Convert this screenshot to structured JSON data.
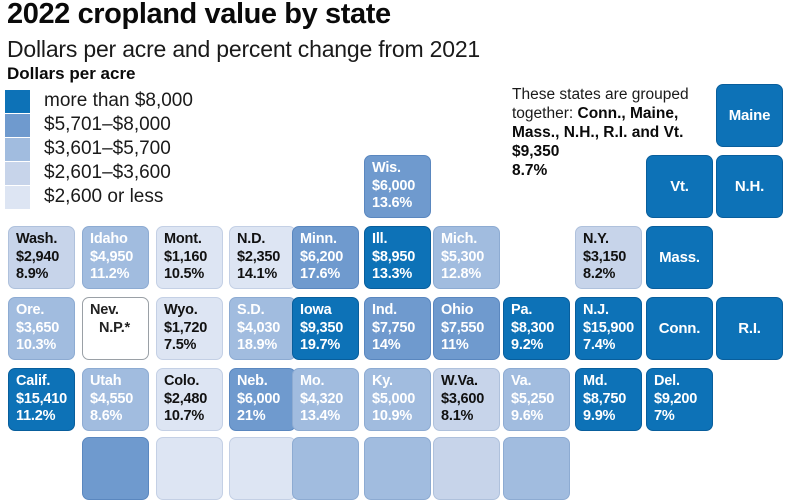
{
  "title": "2022 cropland value by state",
  "subtitle": "Dollars per acre and percent change from 2021",
  "legend": {
    "title": "Dollars per acre",
    "items": [
      {
        "label": "more than $8,000",
        "color": "#0d72b7"
      },
      {
        "label": "$5,701–$8,000",
        "color": "#6f9ace"
      },
      {
        "label": "$3,601–$5,700",
        "color": "#a1bcdf"
      },
      {
        "label": "$2,601–$3,600",
        "color": "#c7d4ea"
      },
      {
        "label": "$2,600 or less",
        "color": "#dde5f3"
      }
    ]
  },
  "annotation": {
    "line1": "These states are grouped",
    "line2_regular": "together: ",
    "line2_bold": "Conn., Maine,",
    "line3_bold": "Mass., N.H., R.I. and Vt.",
    "value": "$9,350",
    "pct": "8.7%"
  },
  "colors": {
    "1": {
      "bg": "#0d72b7",
      "border": "#085e9c",
      "text": "#ffffff"
    },
    "2": {
      "bg": "#6f9ace",
      "border": "#5a87bf",
      "text": "#ffffff"
    },
    "3": {
      "bg": "#a1bcdf",
      "border": "#8dabd2",
      "text": "#ffffff"
    },
    "4": {
      "bg": "#c7d4ea",
      "border": "#afc1dc",
      "text": "#111111"
    },
    "5": {
      "bg": "#dde5f3",
      "border": "#c4d0e5",
      "text": "#111111"
    },
    "np": {
      "bg": "#ffffff",
      "border": "#9aa0a6",
      "text": "#222222"
    }
  },
  "tiles": [
    {
      "name": "Maine",
      "cat": "1",
      "col": 10,
      "row": "maine",
      "label_only": true
    },
    {
      "name": "Vt.",
      "cat": "1",
      "col": 9,
      "row": "vt",
      "label_only": true
    },
    {
      "name": "N.H.",
      "cat": "1",
      "col": 10,
      "row": "vt",
      "label_only": true
    },
    {
      "name": "Wis.",
      "value": "$6,000",
      "pct": "13.6%",
      "cat": "2",
      "col": 5,
      "row": "vt"
    },
    {
      "name": "Wash.",
      "value": "$2,940",
      "pct": "8.9%",
      "cat": "4",
      "col": 0,
      "row": "r1"
    },
    {
      "name": "Idaho",
      "value": "$4,950",
      "pct": "11.2%",
      "cat": "3",
      "col": 1,
      "row": "r1"
    },
    {
      "name": "Mont.",
      "value": "$1,160",
      "pct": "10.5%",
      "cat": "5",
      "col": 2,
      "row": "r1"
    },
    {
      "name": "N.D.",
      "value": "$2,350",
      "pct": "14.1%",
      "cat": "5",
      "col": 3,
      "row": "r1"
    },
    {
      "name": "Minn.",
      "value": "$6,200",
      "pct": "17.6%",
      "cat": "2",
      "col": 4,
      "row": "r1"
    },
    {
      "name": "Ill.",
      "value": "$8,950",
      "pct": "13.3%",
      "cat": "1",
      "col": 5,
      "row": "r1"
    },
    {
      "name": "Mich.",
      "value": "$5,300",
      "pct": "12.8%",
      "cat": "3",
      "col": 6,
      "row": "r1"
    },
    {
      "name": "N.Y.",
      "value": "$3,150",
      "pct": "8.2%",
      "cat": "4",
      "col": 8,
      "row": "r1"
    },
    {
      "name": "Mass.",
      "cat": "1",
      "col": 9,
      "row": "r1",
      "label_only": true
    },
    {
      "name": "Ore.",
      "value": "$3,650",
      "pct": "10.3%",
      "cat": "3",
      "col": 0,
      "row": "r2"
    },
    {
      "name": "Nev.",
      "value": "N.P.*",
      "cat": "np",
      "col": 1,
      "row": "r2",
      "np": true
    },
    {
      "name": "Wyo.",
      "value": "$1,720",
      "pct": "7.5%",
      "cat": "5",
      "col": 2,
      "row": "r2"
    },
    {
      "name": "S.D.",
      "value": "$4,030",
      "pct": "18.9%",
      "cat": "3",
      "col": 3,
      "row": "r2"
    },
    {
      "name": "Iowa",
      "value": "$9,350",
      "pct": "19.7%",
      "cat": "1",
      "col": 4,
      "row": "r2"
    },
    {
      "name": "Ind.",
      "value": "$7,750",
      "pct": "14%",
      "cat": "2",
      "col": 5,
      "row": "r2"
    },
    {
      "name": "Ohio",
      "value": "$7,550",
      "pct": "11%",
      "cat": "2",
      "col": 6,
      "row": "r2"
    },
    {
      "name": "Pa.",
      "value": "$8,300",
      "pct": "9.2%",
      "cat": "1",
      "col": 7,
      "row": "r2"
    },
    {
      "name": "N.J.",
      "value": "$15,900",
      "pct": "7.4%",
      "cat": "1",
      "col": 8,
      "row": "r2"
    },
    {
      "name": "Conn.",
      "cat": "1",
      "col": 9,
      "row": "r2",
      "label_only": true
    },
    {
      "name": "R.I.",
      "cat": "1",
      "col": 10,
      "row": "r2",
      "label_only": true
    },
    {
      "name": "Calif.",
      "value": "$15,410",
      "pct": "11.2%",
      "cat": "1",
      "col": 0,
      "row": "r3"
    },
    {
      "name": "Utah",
      "value": "$4,550",
      "pct": "8.6%",
      "cat": "3",
      "col": 1,
      "row": "r3"
    },
    {
      "name": "Colo.",
      "value": "$2,480",
      "pct": "10.7%",
      "cat": "5",
      "col": 2,
      "row": "r3"
    },
    {
      "name": "Neb.",
      "value": "$6,000",
      "pct": "21%",
      "cat": "2",
      "col": 3,
      "row": "r3"
    },
    {
      "name": "Mo.",
      "value": "$4,320",
      "pct": "13.4%",
      "cat": "3",
      "col": 4,
      "row": "r3"
    },
    {
      "name": "Ky.",
      "value": "$5,000",
      "pct": "10.9%",
      "cat": "3",
      "col": 5,
      "row": "r3"
    },
    {
      "name": "W.Va.",
      "value": "$3,600",
      "pct": "8.1%",
      "cat": "4",
      "col": 6,
      "row": "r3"
    },
    {
      "name": "Va.",
      "value": "$5,250",
      "pct": "9.6%",
      "cat": "3",
      "col": 7,
      "row": "r3"
    },
    {
      "name": "Md.",
      "value": "$8,750",
      "pct": "9.9%",
      "cat": "1",
      "col": 8,
      "row": "r3"
    },
    {
      "name": "Del.",
      "value": "$9,200",
      "pct": "7%",
      "cat": "1",
      "col": 9,
      "row": "r3"
    },
    {
      "name": "",
      "cat": "2",
      "col": 1,
      "row": "r4",
      "partial": true
    },
    {
      "name": "",
      "cat": "5",
      "col": 2,
      "row": "r4",
      "partial": true
    },
    {
      "name": "",
      "cat": "5",
      "col": 3,
      "row": "r4",
      "partial": true
    },
    {
      "name": "",
      "cat": "3",
      "col": 4,
      "row": "r4",
      "partial": true
    },
    {
      "name": "",
      "cat": "3",
      "col": 5,
      "row": "r4",
      "partial": true
    },
    {
      "name": "",
      "cat": "4",
      "col": 6,
      "row": "r4",
      "partial": true
    },
    {
      "name": "",
      "cat": "3",
      "col": 7,
      "row": "r4",
      "partial": true
    }
  ],
  "chart_data": {
    "type": "heatmap",
    "subtype": "state-tile-cartogram",
    "title": "2022 cropland value by state",
    "subtitle": "Dollars per acre and percent change from 2021",
    "unit": "dollars per acre",
    "legend_title": "Dollars per acre",
    "legend_bins": [
      "more than $8,000",
      "$5,701–$8,000",
      "$3,601–$5,700",
      "$2,601–$3,600",
      "$2,600 or less"
    ],
    "legend_position": "top-left",
    "states": [
      {
        "state": "Wash.",
        "value_per_acre": 2940,
        "pct_change": 8.9
      },
      {
        "state": "Ore.",
        "value_per_acre": 3650,
        "pct_change": 10.3
      },
      {
        "state": "Calif.",
        "value_per_acre": 15410,
        "pct_change": 11.2
      },
      {
        "state": "Idaho",
        "value_per_acre": 4950,
        "pct_change": 11.2
      },
      {
        "state": "Nev.",
        "value_per_acre": null,
        "pct_change": null,
        "note": "N.P.*"
      },
      {
        "state": "Utah",
        "value_per_acre": 4550,
        "pct_change": 8.6
      },
      {
        "state": "Mont.",
        "value_per_acre": 1160,
        "pct_change": 10.5
      },
      {
        "state": "Wyo.",
        "value_per_acre": 1720,
        "pct_change": 7.5
      },
      {
        "state": "Colo.",
        "value_per_acre": 2480,
        "pct_change": 10.7
      },
      {
        "state": "N.D.",
        "value_per_acre": 2350,
        "pct_change": 14.1
      },
      {
        "state": "S.D.",
        "value_per_acre": 4030,
        "pct_change": 18.9
      },
      {
        "state": "Neb.",
        "value_per_acre": 6000,
        "pct_change": 21
      },
      {
        "state": "Minn.",
        "value_per_acre": 6200,
        "pct_change": 17.6
      },
      {
        "state": "Iowa",
        "value_per_acre": 9350,
        "pct_change": 19.7
      },
      {
        "state": "Mo.",
        "value_per_acre": 4320,
        "pct_change": 13.4
      },
      {
        "state": "Wis.",
        "value_per_acre": 6000,
        "pct_change": 13.6
      },
      {
        "state": "Ill.",
        "value_per_acre": 8950,
        "pct_change": 13.3
      },
      {
        "state": "Ind.",
        "value_per_acre": 7750,
        "pct_change": 14
      },
      {
        "state": "Ky.",
        "value_per_acre": 5000,
        "pct_change": 10.9
      },
      {
        "state": "Mich.",
        "value_per_acre": 5300,
        "pct_change": 12.8
      },
      {
        "state": "Ohio",
        "value_per_acre": 7550,
        "pct_change": 11
      },
      {
        "state": "W.Va.",
        "value_per_acre": 3600,
        "pct_change": 8.1
      },
      {
        "state": "Pa.",
        "value_per_acre": 8300,
        "pct_change": 9.2
      },
      {
        "state": "Va.",
        "value_per_acre": 5250,
        "pct_change": 9.6
      },
      {
        "state": "N.Y.",
        "value_per_acre": 3150,
        "pct_change": 8.2
      },
      {
        "state": "N.J.",
        "value_per_acre": 15900,
        "pct_change": 7.4
      },
      {
        "state": "Md.",
        "value_per_acre": 8750,
        "pct_change": 9.9
      },
      {
        "state": "Del.",
        "value_per_acre": 9200,
        "pct_change": 7
      }
    ],
    "grouped_states": {
      "note": "These states are grouped together: Conn., Maine, Mass., N.H., R.I. and Vt.",
      "members": [
        "Conn.",
        "Maine",
        "Mass.",
        "N.H.",
        "R.I.",
        "Vt."
      ],
      "value_per_acre": 9350,
      "pct_change": 8.7
    }
  }
}
